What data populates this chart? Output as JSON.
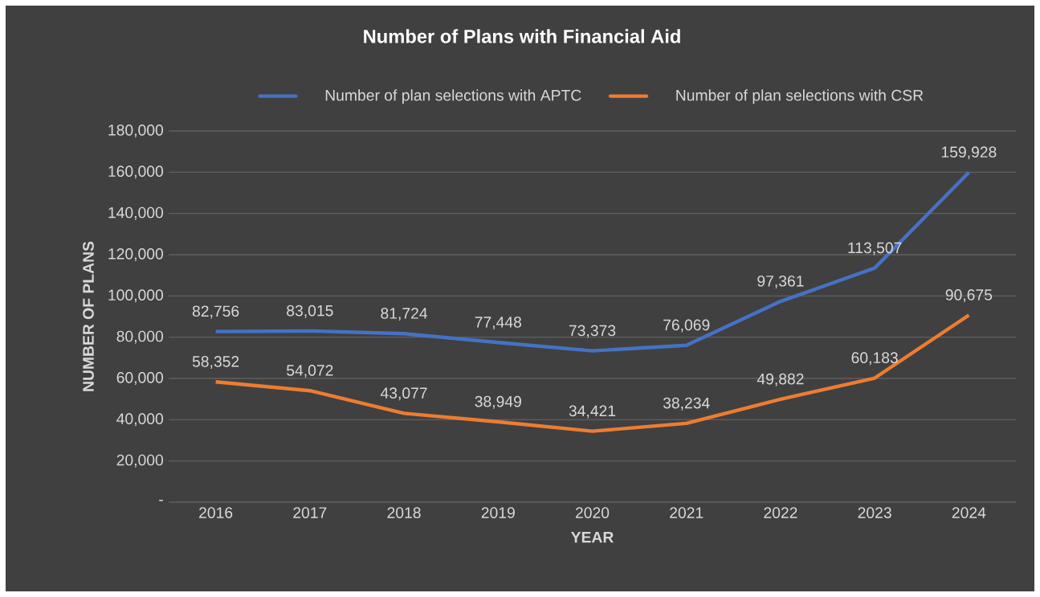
{
  "chart_data": {
    "type": "line",
    "title": "Number of Plans with Financial Aid",
    "xlabel": "YEAR",
    "ylabel": "NUMBER OF PLANS",
    "categories": [
      "2016",
      "2017",
      "2018",
      "2019",
      "2020",
      "2021",
      "2022",
      "2023",
      "2024"
    ],
    "series": [
      {
        "name": "Number of plan selections with APTC",
        "color": "#4472c4",
        "values": [
          82756,
          83015,
          81724,
          77448,
          73373,
          76069,
          97361,
          113507,
          159928
        ],
        "value_labels": [
          "82,756",
          "83,015",
          "81,724",
          "77,448",
          "73,373",
          "76,069",
          "97,361",
          "113,507",
          "159,928"
        ]
      },
      {
        "name": "Number of plan selections with CSR",
        "color": "#ed7d31",
        "values": [
          58352,
          54072,
          43077,
          38949,
          34421,
          38234,
          49882,
          60183,
          90675
        ],
        "value_labels": [
          "58,352",
          "54,072",
          "43,077",
          "38,949",
          "34,421",
          "38,234",
          "49,882",
          "60,183",
          "90,675"
        ]
      }
    ],
    "ylim": [
      0,
      180000
    ],
    "yticks": [
      {
        "value": 0,
        "label": "-"
      },
      {
        "value": 20000,
        "label": "20,000"
      },
      {
        "value": 40000,
        "label": "40,000"
      },
      {
        "value": 60000,
        "label": "60,000"
      },
      {
        "value": 80000,
        "label": "80,000"
      },
      {
        "value": 100000,
        "label": "100,000"
      },
      {
        "value": 120000,
        "label": "120,000"
      },
      {
        "value": 140000,
        "label": "140,000"
      },
      {
        "value": 160000,
        "label": "160,000"
      },
      {
        "value": 180000,
        "label": "180,000"
      }
    ],
    "grid": "y",
    "legend": "top",
    "marker": "none",
    "line_style": "solid"
  }
}
